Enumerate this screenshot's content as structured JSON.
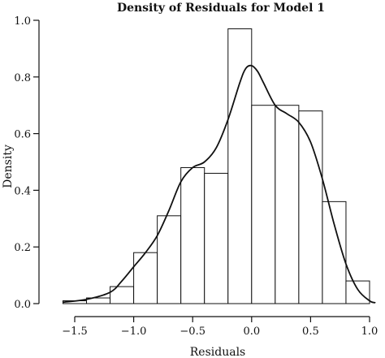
{
  "chart_data": {
    "type": "histogram",
    "title": "Density of Residuals for Model 1",
    "xlabel": "Residuals",
    "ylabel": "Density",
    "xlim": [
      -1.65,
      1.05
    ],
    "ylim": [
      0,
      1.0
    ],
    "xticks": [
      -1.5,
      -1.0,
      -0.5,
      0.0,
      0.5,
      1.0
    ],
    "xtick_labels": [
      "−1.5",
      "−1.0",
      "−0.5",
      "0.0",
      "0.5",
      "1.0"
    ],
    "yticks": [
      0.0,
      0.2,
      0.4,
      0.6,
      0.8,
      1.0
    ],
    "ytick_labels": [
      "0.0",
      "0.2",
      "0.4",
      "0.6",
      "0.8",
      "1.0"
    ],
    "grid": false,
    "legend": false,
    "bins": {
      "edges": [
        -1.6,
        -1.4,
        -1.2,
        -1.0,
        -0.8,
        -0.6,
        -0.4,
        -0.2,
        0.0,
        0.2,
        0.4,
        0.6,
        0.8,
        1.0
      ],
      "density": [
        0.01,
        0.02,
        0.06,
        0.18,
        0.31,
        0.48,
        0.46,
        0.97,
        0.7,
        0.7,
        0.68,
        0.36,
        0.08
      ]
    },
    "density_curve": {
      "x": [
        -1.6,
        -1.4,
        -1.2,
        -1.1,
        -1.0,
        -0.9,
        -0.8,
        -0.7,
        -0.6,
        -0.5,
        -0.4,
        -0.3,
        -0.2,
        -0.1,
        -0.05,
        0.0,
        0.05,
        0.1,
        0.2,
        0.3,
        0.4,
        0.5,
        0.6,
        0.7,
        0.8,
        0.9,
        1.0,
        1.05
      ],
      "y": [
        0.005,
        0.015,
        0.04,
        0.08,
        0.13,
        0.18,
        0.24,
        0.33,
        0.43,
        0.48,
        0.5,
        0.55,
        0.65,
        0.78,
        0.83,
        0.84,
        0.82,
        0.78,
        0.7,
        0.67,
        0.64,
        0.57,
        0.44,
        0.28,
        0.14,
        0.05,
        0.01,
        0.003
      ]
    }
  }
}
